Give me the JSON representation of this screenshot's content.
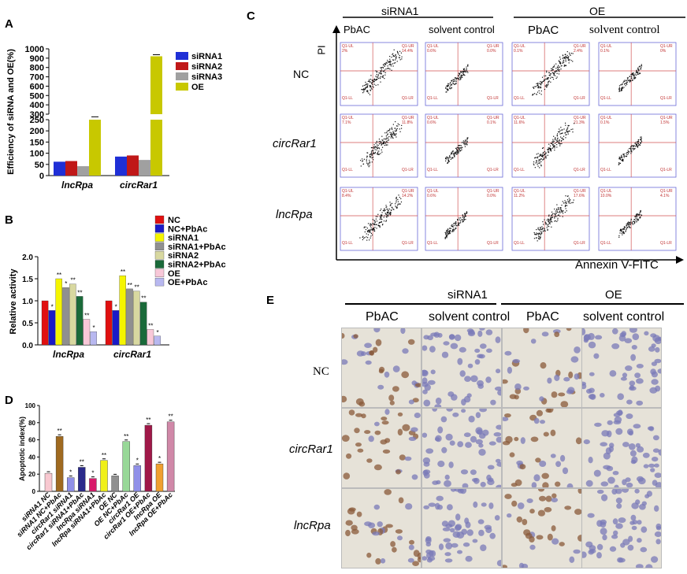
{
  "panels": {
    "a": "A",
    "b": "B",
    "c": "C",
    "d": "D",
    "e": "E"
  },
  "chart_data": [
    {
      "id": "A",
      "type": "bar",
      "ylabel": "Efficiency of siRNA and OE(%)",
      "categories": [
        "lncRpa",
        "circRar1"
      ],
      "series": [
        {
          "name": "siRNA1",
          "color": "#1f2fd6",
          "values": [
            62,
            85
          ]
        },
        {
          "name": "siRNA2",
          "color": "#c01818",
          "values": [
            65,
            90
          ]
        },
        {
          "name": "siRNA3",
          "color": "#a0a0a0",
          "values": [
            42,
            70
          ]
        },
        {
          "name": "OE",
          "color": "#c8c800",
          "values": [
            255,
            920
          ]
        }
      ],
      "yticks_lower": [
        "0",
        "50",
        "100",
        "150",
        "200",
        "250"
      ],
      "yticks_upper": [
        "300",
        "400",
        "500",
        "600",
        "700",
        "800",
        "900",
        "1000"
      ],
      "error_labels": []
    },
    {
      "id": "B",
      "type": "bar",
      "ylabel": "Relative activity",
      "categories": [
        "lncRpa",
        "circRar1"
      ],
      "ylim": [
        0,
        2.0
      ],
      "yticks": [
        "0.0",
        "0.5",
        "1.0",
        "1.5",
        "2.0"
      ],
      "series": [
        {
          "name": "NC",
          "color": "#e01010",
          "values": [
            1.0,
            1.0
          ],
          "marks": [
            "",
            ""
          ]
        },
        {
          "name": "NC+PbAc",
          "color": "#1a1ac8",
          "values": [
            0.78,
            0.78
          ],
          "marks": [
            "*",
            "*"
          ]
        },
        {
          "name": "siRNA1",
          "color": "#f5f500",
          "values": [
            1.5,
            1.57
          ],
          "marks": [
            "**",
            "**"
          ]
        },
        {
          "name": "siRNA1+PbAc",
          "color": "#909090",
          "values": [
            1.3,
            1.27
          ],
          "marks": [
            "*",
            "**"
          ]
        },
        {
          "name": "siRNA2",
          "color": "#d8d8a0",
          "values": [
            1.38,
            1.22
          ],
          "marks": [
            "**",
            "**"
          ]
        },
        {
          "name": "siRNA2+PbAc",
          "color": "#1a6a3a",
          "values": [
            1.1,
            0.97
          ],
          "marks": [
            "**",
            "**"
          ]
        },
        {
          "name": "OE",
          "color": "#f8c8d8",
          "values": [
            0.58,
            0.35
          ],
          "marks": [
            "**",
            "**"
          ]
        },
        {
          "name": "OE+PbAc",
          "color": "#b8b8f0",
          "values": [
            0.3,
            0.2
          ],
          "marks": [
            "*",
            "*"
          ]
        }
      ]
    },
    {
      "id": "D",
      "type": "bar",
      "ylabel": "Apoptotic index(%)",
      "ylim": [
        0,
        100
      ],
      "yticks": [
        "0",
        "20",
        "40",
        "60",
        "80",
        "100"
      ],
      "categories": [
        "siRNA1 NC",
        "siRNA1 NC+PbAc",
        "circRar1 siRNA1",
        "circRar1 siRNA1+PbAc",
        "lncRpa siRNA1",
        "lncRpa siRNA1+PbAc",
        "OE NC",
        "OE NC+PbAc",
        "circRar1 OE",
        "circRar1 OE+PbAc",
        "lncRpa OE",
        "lncRpa OE+PbAc"
      ],
      "values": [
        21,
        64,
        16,
        28,
        15,
        36,
        18,
        58,
        30,
        77,
        32,
        81
      ],
      "marks": [
        "",
        "**",
        "*",
        "**",
        "*",
        "**",
        "",
        "**",
        "*",
        "**",
        "*",
        "**"
      ],
      "colors": [
        "#f8c8d0",
        "#a06a20",
        "#9090e8",
        "#2a2a8a",
        "#d81a6a",
        "#f0f018",
        "#909090",
        "#98d898",
        "#9090e8",
        "#a01848",
        "#f0a030",
        "#d088a8"
      ]
    }
  ],
  "flow": {
    "title_left": "siRNA1",
    "title_right": "OE",
    "col_labels": [
      "PbAC",
      "solvent control",
      "PbAC",
      "solvent control"
    ],
    "row_labels": [
      "NC",
      "circRar1",
      "lncRpa"
    ],
    "y_axis": "PI",
    "x_axis": "Annexin V-FITC",
    "quad_labels": [
      "Q1-UL",
      "Q1-UR",
      "Q1-LL",
      "Q1-LR"
    ],
    "values": [
      [
        "2%",
        "14.4%",
        "0.6%",
        "0.0%",
        "0.1%",
        "2.4%",
        "0.1%",
        "0%"
      ],
      [
        "7.1%",
        "11.8%",
        "0.6%",
        "0.1%",
        "11.6%",
        "21.3%",
        "0.1%",
        "1.5%"
      ],
      [
        "8.4%",
        "14.2%",
        "0.6%",
        "0.0%",
        "11.2%",
        "17.6%",
        "10.0%",
        "4.1%"
      ]
    ]
  },
  "micro": {
    "title_left": "siRNA1",
    "title_right": "OE",
    "col_labels": [
      "PbAC",
      "solvent control",
      "PbAC",
      "solvent control"
    ],
    "row_labels": [
      "NC",
      "circRar1",
      "lncRpa"
    ]
  }
}
